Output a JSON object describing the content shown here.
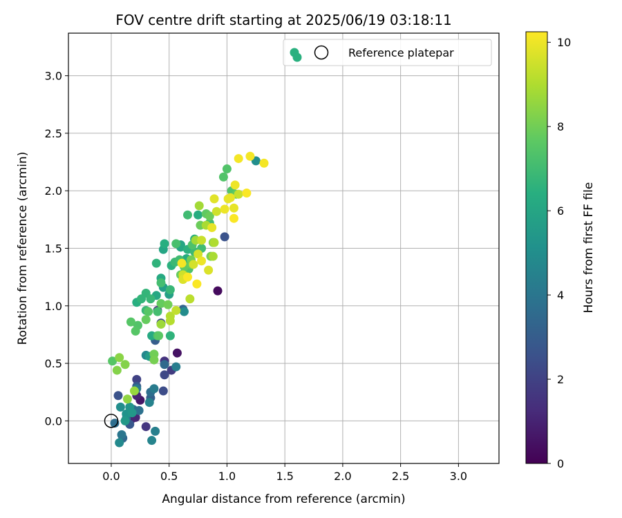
{
  "chart_data": {
    "type": "scatter",
    "title": "FOV centre drift starting at 2025/06/19 03:18:11",
    "xlabel": "Angular distance from reference (arcmin)",
    "ylabel": "Rotation from reference (arcmin)",
    "xlim": [
      -0.37,
      3.35
    ],
    "ylim": [
      -0.37,
      3.37
    ],
    "xticks": [
      0.0,
      0.5,
      1.0,
      1.5,
      2.0,
      2.5,
      3.0
    ],
    "yticks": [
      0.0,
      0.5,
      1.0,
      1.5,
      2.0,
      2.5,
      3.0
    ],
    "xtick_labels": [
      "0.0",
      "0.5",
      "1.0",
      "1.5",
      "2.0",
      "2.5",
      "3.0"
    ],
    "ytick_labels": [
      "0.0",
      "0.5",
      "1.0",
      "1.5",
      "2.0",
      "2.5",
      "3.0"
    ],
    "grid": true,
    "legend": {
      "placement": "top-right",
      "entries": [
        {
          "label": "",
          "marker": "filled-circle",
          "color": "#2ab07f"
        },
        {
          "label": "Reference platepar",
          "marker": "hollow-circle",
          "color": "#000000"
        }
      ]
    },
    "reference_point": {
      "x": 0.0,
      "y": 0.0
    },
    "colorbar": {
      "label": "Hours from first FF file",
      "colormap": "viridis",
      "range": [
        0,
        10.25
      ],
      "ticks": [
        0,
        2,
        4,
        6,
        8,
        10
      ],
      "tick_labels": [
        "0",
        "2",
        "4",
        "6",
        "8",
        "10"
      ]
    },
    "series": [
      {
        "points": [
          [
            0.92,
            1.13,
            0.3
          ],
          [
            0.57,
            0.59,
            0.5
          ],
          [
            0.25,
            0.18,
            0.6
          ],
          [
            0.18,
            0.02,
            0.8
          ],
          [
            0.22,
            0.22,
            1.0
          ],
          [
            0.21,
            0.03,
            1.1
          ],
          [
            0.4,
            0.96,
            1.2
          ],
          [
            0.46,
            0.52,
            1.5
          ],
          [
            0.3,
            -0.05,
            1.6
          ],
          [
            0.52,
            0.44,
            1.8
          ],
          [
            0.22,
            0.36,
            2.0
          ],
          [
            0.46,
            0.4,
            2.2
          ],
          [
            0.43,
            0.85,
            2.3
          ],
          [
            0.45,
            0.26,
            2.4
          ],
          [
            0.98,
            1.6,
            2.6
          ],
          [
            0.06,
            0.22,
            2.6
          ],
          [
            0.16,
            -0.03,
            2.8
          ],
          [
            0.22,
            0.3,
            2.9
          ],
          [
            0.38,
            0.7,
            3.0
          ],
          [
            0.34,
            0.2,
            3.1
          ],
          [
            0.62,
            0.97,
            3.3
          ],
          [
            0.1,
            -0.15,
            3.4
          ],
          [
            0.46,
            0.49,
            3.5
          ],
          [
            0.19,
            0.1,
            3.6
          ],
          [
            0.34,
            0.25,
            3.7
          ],
          [
            0.03,
            -0.02,
            3.7
          ],
          [
            0.24,
            0.09,
            3.8
          ],
          [
            0.13,
            0.02,
            3.9
          ],
          [
            0.09,
            -0.12,
            4.0
          ],
          [
            0.22,
            0.28,
            4.1
          ],
          [
            0.37,
            0.28,
            4.2
          ],
          [
            0.56,
            0.47,
            4.3
          ],
          [
            0.38,
            -0.09,
            4.4
          ],
          [
            0.33,
            0.16,
            4.5
          ],
          [
            0.35,
            -0.17,
            4.6
          ],
          [
            0.3,
            0.57,
            4.7
          ],
          [
            0.07,
            -0.19,
            4.8
          ],
          [
            0.63,
            0.95,
            4.9
          ],
          [
            0.08,
            0.12,
            5.0
          ],
          [
            1.25,
            2.26,
            5.0
          ],
          [
            0.13,
            0.06,
            5.2
          ],
          [
            0.16,
            0.12,
            5.3
          ],
          [
            0.18,
            0.07,
            5.4
          ],
          [
            0.12,
            0.0,
            5.5
          ],
          [
            0.33,
            0.56,
            5.6
          ],
          [
            0.45,
            1.16,
            5.7
          ],
          [
            0.5,
            1.1,
            5.8
          ],
          [
            0.6,
            1.53,
            5.9
          ],
          [
            0.45,
            1.49,
            6.0
          ],
          [
            0.6,
            1.51,
            6.1
          ],
          [
            0.39,
            1.09,
            6.1
          ],
          [
            0.35,
            0.74,
            6.2
          ],
          [
            0.43,
            1.24,
            6.2
          ],
          [
            0.65,
            1.41,
            6.3
          ],
          [
            0.75,
            1.79,
            6.3
          ],
          [
            0.22,
            1.03,
            6.4
          ],
          [
            0.46,
            1.54,
            6.4
          ],
          [
            0.52,
            1.35,
            6.5
          ],
          [
            0.66,
            1.49,
            6.5
          ],
          [
            0.72,
            1.58,
            6.5
          ],
          [
            0.39,
            1.37,
            6.6
          ],
          [
            0.51,
            0.74,
            6.6
          ],
          [
            0.3,
            1.11,
            6.7
          ],
          [
            0.26,
            1.06,
            6.7
          ],
          [
            0.3,
            0.96,
            6.8
          ],
          [
            0.34,
            1.06,
            6.8
          ],
          [
            0.51,
            1.14,
            6.8
          ],
          [
            0.55,
            1.38,
            6.9
          ],
          [
            0.72,
            1.47,
            6.9
          ],
          [
            0.78,
            1.5,
            7.0
          ],
          [
            0.85,
            1.72,
            7.0
          ],
          [
            0.66,
            1.79,
            7.0
          ],
          [
            0.59,
            1.4,
            7.0
          ],
          [
            0.4,
            0.95,
            7.1
          ],
          [
            0.43,
            1.2,
            7.1
          ],
          [
            0.4,
            0.74,
            7.2
          ],
          [
            0.56,
            1.54,
            7.2
          ],
          [
            0.64,
            1.31,
            7.3
          ],
          [
            0.67,
            1.32,
            7.3
          ],
          [
            0.7,
            1.53,
            7.3
          ],
          [
            0.97,
            2.12,
            7.4
          ],
          [
            1.0,
            2.19,
            7.4
          ],
          [
            1.04,
            2.0,
            7.4
          ],
          [
            0.23,
            0.83,
            7.4
          ],
          [
            0.21,
            0.78,
            7.5
          ],
          [
            0.17,
            0.86,
            7.5
          ],
          [
            0.01,
            0.52,
            7.5
          ],
          [
            0.32,
            0.95,
            7.5
          ],
          [
            0.41,
            0.74,
            7.6
          ],
          [
            0.63,
            1.27,
            7.6
          ],
          [
            0.63,
            1.34,
            7.7
          ],
          [
            1.08,
            1.97,
            7.7
          ],
          [
            0.82,
            1.8,
            7.7
          ],
          [
            0.3,
            0.88,
            7.8
          ],
          [
            0.43,
            1.02,
            7.8
          ],
          [
            0.6,
            1.27,
            7.8
          ],
          [
            0.69,
            1.36,
            7.8
          ],
          [
            0.77,
            1.7,
            7.9
          ],
          [
            0.85,
            1.78,
            7.9
          ],
          [
            0.69,
            1.4,
            8.0
          ],
          [
            0.49,
            1.01,
            8.0
          ],
          [
            0.37,
            0.58,
            8.0
          ],
          [
            0.37,
            0.53,
            8.1
          ],
          [
            0.86,
            1.43,
            8.1
          ],
          [
            0.88,
            1.55,
            8.2
          ],
          [
            0.12,
            0.49,
            8.3
          ],
          [
            0.05,
            0.44,
            8.3
          ],
          [
            0.07,
            0.55,
            8.4
          ],
          [
            0.14,
            0.19,
            8.5
          ],
          [
            0.2,
            0.26,
            8.6
          ],
          [
            0.43,
            0.84,
            8.7
          ],
          [
            0.76,
            1.87,
            8.8
          ],
          [
            0.73,
            1.57,
            8.8
          ],
          [
            0.82,
            1.7,
            8.9
          ],
          [
            0.88,
            1.43,
            8.9
          ],
          [
            0.89,
            1.55,
            9.0
          ],
          [
            0.62,
            1.23,
            9.0
          ],
          [
            0.51,
            0.87,
            9.1
          ],
          [
            0.51,
            0.91,
            9.1
          ],
          [
            0.68,
            1.06,
            9.2
          ],
          [
            0.56,
            0.96,
            9.3
          ],
          [
            1.1,
            1.97,
            9.4
          ],
          [
            0.78,
            1.57,
            9.4
          ],
          [
            0.91,
            1.82,
            9.5
          ],
          [
            0.62,
            1.27,
            9.5
          ],
          [
            0.71,
            1.36,
            9.6
          ],
          [
            0.75,
            1.45,
            9.6
          ],
          [
            0.62,
            1.23,
            9.7
          ],
          [
            0.84,
            1.31,
            9.7
          ],
          [
            0.89,
            1.93,
            9.8
          ],
          [
            0.87,
            1.68,
            9.9
          ],
          [
            1.03,
            1.94,
            9.9
          ],
          [
            1.06,
            1.85,
            9.9
          ],
          [
            1.07,
            2.05,
            10.0
          ],
          [
            1.1,
            2.28,
            10.1
          ],
          [
            1.2,
            2.3,
            10.1
          ],
          [
            1.32,
            2.24,
            10.1
          ],
          [
            1.17,
            1.98,
            10.2
          ],
          [
            1.06,
            1.76,
            10.2
          ],
          [
            0.74,
            1.19,
            10.2
          ],
          [
            0.66,
            1.25,
            10.2
          ],
          [
            0.61,
            1.37,
            10.1
          ],
          [
            0.78,
            1.39,
            10.0
          ],
          [
            1.01,
            1.93,
            9.9
          ],
          [
            0.98,
            1.84,
            10.0
          ]
        ]
      }
    ]
  }
}
